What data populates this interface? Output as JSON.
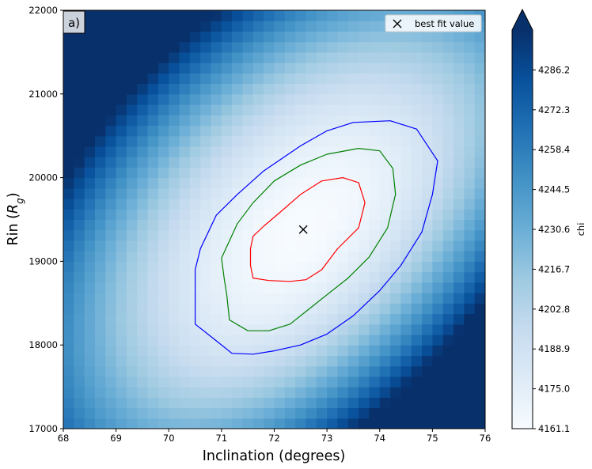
{
  "chart_data": {
    "type": "heatmap",
    "panel_label": "a)",
    "xlabel": "Inclination (degrees)",
    "ylabel_prefix": "Rin (",
    "ylabel_symbol": "R",
    "ylabel_sub": "g",
    "ylabel_suffix": ")",
    "xlim": [
      68,
      76
    ],
    "ylim": [
      17000,
      22000
    ],
    "xticks": [
      68,
      69,
      70,
      71,
      72,
      73,
      74,
      75,
      76
    ],
    "yticks": [
      17000,
      18000,
      19000,
      20000,
      21000,
      22000
    ],
    "best_fit": {
      "x": 72.55,
      "y": 19380
    },
    "legend": {
      "label": "best fit value",
      "placement": "top-right"
    },
    "colorbar": {
      "label": "chi",
      "ticks": [
        "4161.1",
        "4175.0",
        "4188.9",
        "4202.8",
        "4216.7",
        "4230.6",
        "4244.5",
        "4258.4",
        "4272.3",
        "4286.2"
      ],
      "min": 4161.1,
      "max": 4300.1,
      "extend": "max"
    },
    "contours": [
      {
        "name": "inner",
        "color": "#ff0000",
        "points": [
          [
            72.1,
            19580
          ],
          [
            72.5,
            19800
          ],
          [
            72.9,
            19960
          ],
          [
            73.3,
            20000
          ],
          [
            73.6,
            19940
          ],
          [
            73.72,
            19700
          ],
          [
            73.6,
            19400
          ],
          [
            73.2,
            19150
          ],
          [
            72.9,
            18900
          ],
          [
            72.6,
            18780
          ],
          [
            72.3,
            18760
          ],
          [
            71.9,
            18770
          ],
          [
            71.6,
            18800
          ],
          [
            71.55,
            18950
          ],
          [
            71.55,
            19150
          ],
          [
            71.6,
            19300
          ],
          [
            71.8,
            19420
          ],
          [
            72.1,
            19580
          ]
        ]
      },
      {
        "name": "middle",
        "color": "#008000",
        "points": [
          [
            71.0,
            19040
          ],
          [
            71.3,
            19450
          ],
          [
            71.6,
            19700
          ],
          [
            72.0,
            19960
          ],
          [
            72.5,
            20150
          ],
          [
            73.0,
            20280
          ],
          [
            73.6,
            20350
          ],
          [
            74.0,
            20320
          ],
          [
            74.25,
            20110
          ],
          [
            74.3,
            19800
          ],
          [
            74.15,
            19400
          ],
          [
            73.8,
            19050
          ],
          [
            73.4,
            18800
          ],
          [
            73.0,
            18600
          ],
          [
            72.6,
            18400
          ],
          [
            72.3,
            18250
          ],
          [
            71.9,
            18170
          ],
          [
            71.5,
            18170
          ],
          [
            71.15,
            18300
          ],
          [
            71.1,
            18600
          ],
          [
            71.05,
            18800
          ],
          [
            71.0,
            19040
          ]
        ]
      },
      {
        "name": "outer",
        "color": "#0000ff",
        "points": [
          [
            70.6,
            19150
          ],
          [
            70.9,
            19550
          ],
          [
            71.3,
            19800
          ],
          [
            71.8,
            20080
          ],
          [
            72.5,
            20380
          ],
          [
            73.0,
            20560
          ],
          [
            73.5,
            20660
          ],
          [
            74.2,
            20680
          ],
          [
            74.7,
            20580
          ],
          [
            75.1,
            20200
          ],
          [
            75.0,
            19800
          ],
          [
            74.8,
            19350
          ],
          [
            74.4,
            18950
          ],
          [
            74.0,
            18650
          ],
          [
            73.5,
            18350
          ],
          [
            73.0,
            18130
          ],
          [
            72.5,
            18000
          ],
          [
            72.0,
            17930
          ],
          [
            71.6,
            17890
          ],
          [
            71.2,
            17900
          ],
          [
            70.9,
            18050
          ],
          [
            70.5,
            18250
          ],
          [
            70.5,
            18550
          ],
          [
            70.5,
            18900
          ],
          [
            70.6,
            19150
          ]
        ]
      }
    ]
  }
}
